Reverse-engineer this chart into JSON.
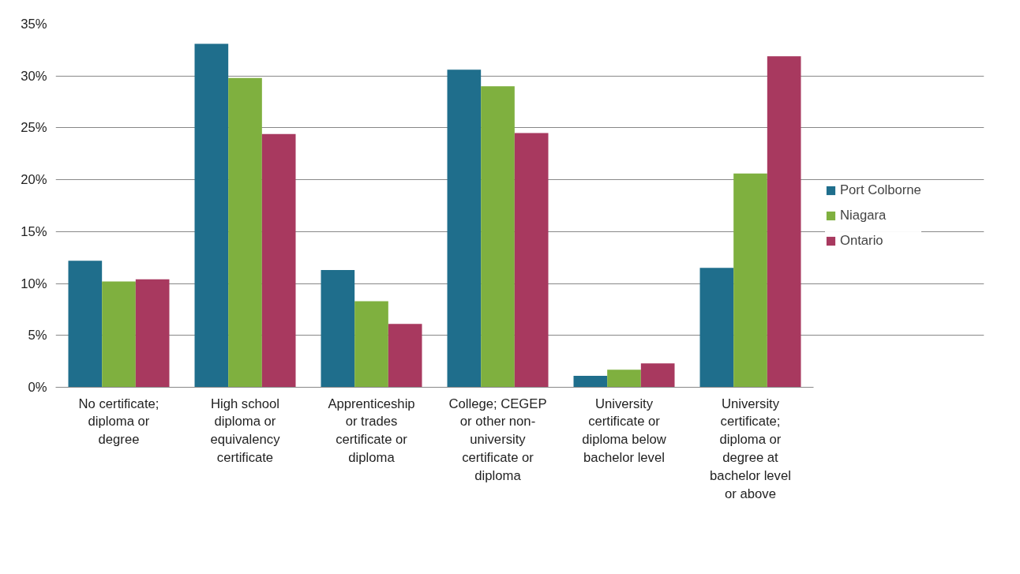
{
  "chart_data": {
    "type": "bar",
    "categories": [
      "No certificate; diploma or degree",
      "High school diploma or equivalency certificate",
      "Apprenticeship or trades certificate or diploma",
      "College; CEGEP or other non-university certificate or diploma",
      "University certificate or diploma below bachelor level",
      "University certificate; diploma or degree at bachelor level or above"
    ],
    "series": [
      {
        "name": "Port Colborne",
        "color": "#1f6e8c",
        "values": [
          12.2,
          33.1,
          11.3,
          30.6,
          1.1,
          11.5
        ]
      },
      {
        "name": "Niagara",
        "color": "#7fb03f",
        "values": [
          10.2,
          29.8,
          8.3,
          29.0,
          1.7,
          20.6
        ]
      },
      {
        "name": "Ontario",
        "color": "#a8395f",
        "values": [
          10.4,
          24.4,
          6.1,
          24.5,
          2.3,
          31.9
        ]
      }
    ],
    "ylim": [
      0,
      35
    ],
    "yticks": [
      {
        "value": 0,
        "label": "0%"
      },
      {
        "value": 5,
        "label": "5%"
      },
      {
        "value": 10,
        "label": "10%"
      },
      {
        "value": 15,
        "label": "15%"
      },
      {
        "value": 20,
        "label": "20%"
      },
      {
        "value": 25,
        "label": "25%"
      },
      {
        "value": 30,
        "label": "30%"
      },
      {
        "value": 35,
        "label": "35%"
      }
    ],
    "grid": "y",
    "legend": "right"
  }
}
